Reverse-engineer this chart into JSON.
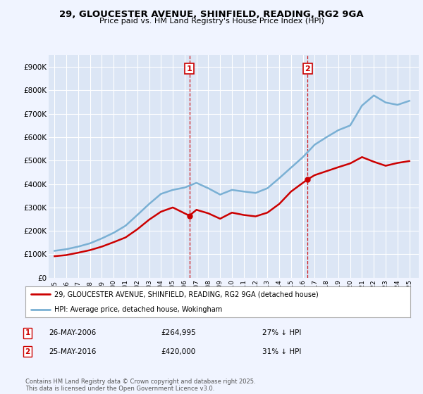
{
  "title": "29, GLOUCESTER AVENUE, SHINFIELD, READING, RG2 9GA",
  "subtitle": "Price paid vs. HM Land Registry's House Price Index (HPI)",
  "background_color": "#f0f4ff",
  "plot_background": "#dce6f5",
  "legend_label_red": "29, GLOUCESTER AVENUE, SHINFIELD, READING, RG2 9GA (detached house)",
  "legend_label_blue": "HPI: Average price, detached house, Wokingham",
  "footer": "Contains HM Land Registry data © Crown copyright and database right 2025.\nThis data is licensed under the Open Government Licence v3.0.",
  "annotation1": {
    "num": "1",
    "date": "26-MAY-2006",
    "price": "£264,995",
    "note": "27% ↓ HPI",
    "x_year": 2006.4
  },
  "annotation2": {
    "num": "2",
    "date": "25-MAY-2016",
    "price": "£420,000",
    "note": "31% ↓ HPI",
    "x_year": 2016.4
  },
  "red_color": "#cc0000",
  "blue_color": "#7ab0d4",
  "years": [
    1995,
    1996,
    1997,
    1998,
    1999,
    2000,
    2001,
    2002,
    2003,
    2004,
    2005,
    2006,
    2007,
    2008,
    2009,
    2010,
    2011,
    2012,
    2013,
    2014,
    2015,
    2016,
    2017,
    2018,
    2019,
    2020,
    2021,
    2022,
    2023,
    2024,
    2025
  ],
  "hpi_values": [
    115000,
    122000,
    133000,
    147000,
    168000,
    192000,
    222000,
    268000,
    315000,
    358000,
    375000,
    385000,
    405000,
    382000,
    355000,
    375000,
    368000,
    362000,
    382000,
    425000,
    470000,
    515000,
    568000,
    600000,
    630000,
    650000,
    735000,
    778000,
    748000,
    738000,
    755000
  ],
  "red_values_x": [
    1995,
    1996,
    1997,
    1998,
    1999,
    2000,
    2001,
    2002,
    2003,
    2004,
    2005,
    2006.4,
    2007,
    2008,
    2009,
    2010,
    2011,
    2012,
    2013,
    2014,
    2015,
    2016.4,
    2017,
    2018,
    2019,
    2020,
    2021,
    2022,
    2023,
    2024,
    2025
  ],
  "red_values_y": [
    92000,
    97000,
    107000,
    118000,
    133000,
    152000,
    172000,
    207000,
    248000,
    282000,
    300000,
    264995,
    290000,
    275000,
    252000,
    278000,
    268000,
    262000,
    278000,
    315000,
    368000,
    420000,
    438000,
    455000,
    472000,
    488000,
    515000,
    495000,
    478000,
    490000,
    498000
  ],
  "ylim": [
    0,
    950000
  ],
  "yticks": [
    0,
    100000,
    200000,
    300000,
    400000,
    500000,
    600000,
    700000,
    800000,
    900000
  ],
  "ytick_labels": [
    "£0",
    "£100K",
    "£200K",
    "£300K",
    "£400K",
    "£500K",
    "£600K",
    "£700K",
    "£800K",
    "£900K"
  ],
  "xlim": [
    1994.5,
    2025.8
  ],
  "xticks": [
    1995,
    1996,
    1997,
    1998,
    1999,
    2000,
    2001,
    2002,
    2003,
    2004,
    2005,
    2006,
    2007,
    2008,
    2009,
    2010,
    2011,
    2012,
    2013,
    2014,
    2015,
    2016,
    2017,
    2018,
    2019,
    2020,
    2021,
    2022,
    2023,
    2024,
    2025
  ]
}
